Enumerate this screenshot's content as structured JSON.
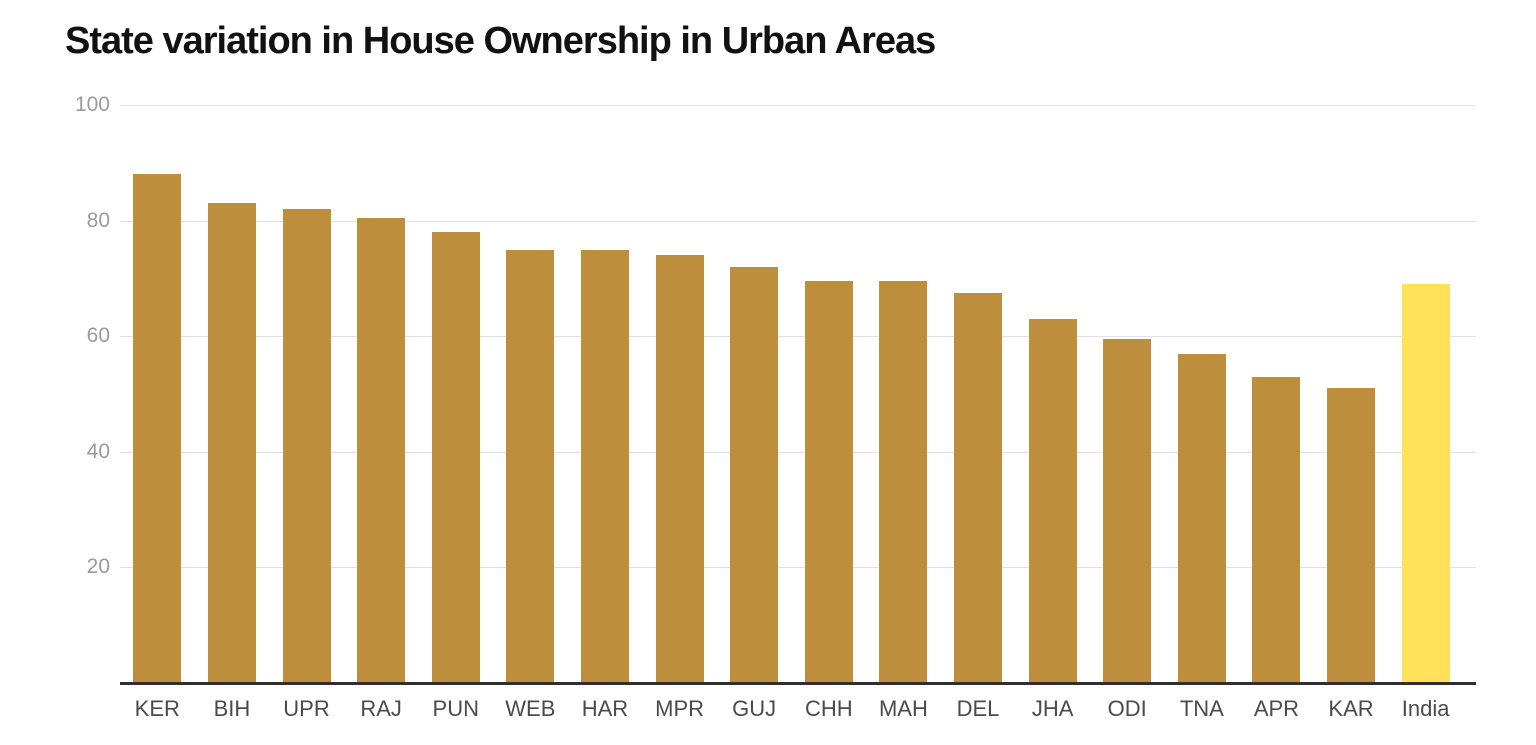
{
  "title": "State variation in House Ownership in Urban Areas",
  "chart_data": {
    "type": "bar",
    "title": "State variation in House Ownership in Urban Areas",
    "categories": [
      "KER",
      "BIH",
      "UPR",
      "RAJ",
      "PUN",
      "WEB",
      "HAR",
      "MPR",
      "GUJ",
      "CHH",
      "MAH",
      "DEL",
      "JHA",
      "ODI",
      "TNA",
      "APR",
      "KAR",
      "India"
    ],
    "values": [
      88,
      83,
      82,
      80.5,
      78,
      75,
      75,
      74,
      72,
      69.5,
      69.5,
      67.5,
      63,
      59.5,
      57,
      53,
      51,
      69
    ],
    "highlight_category": "India",
    "xlabel": "",
    "ylabel": "",
    "ylim": [
      0,
      100
    ],
    "yticks": [
      20,
      40,
      60,
      80,
      100
    ],
    "grid": "horizontal-only",
    "legend": "none",
    "colors": {
      "bar": "#BD8F3C",
      "highlight_bar": "#FFE15A",
      "gridline": "#E2E2E2",
      "baseline": "#2F2F2F",
      "ytick_label": "#9B9B9B",
      "category_label": "#4B4B4B",
      "title": "#111111",
      "background": "#FFFFFF"
    }
  }
}
